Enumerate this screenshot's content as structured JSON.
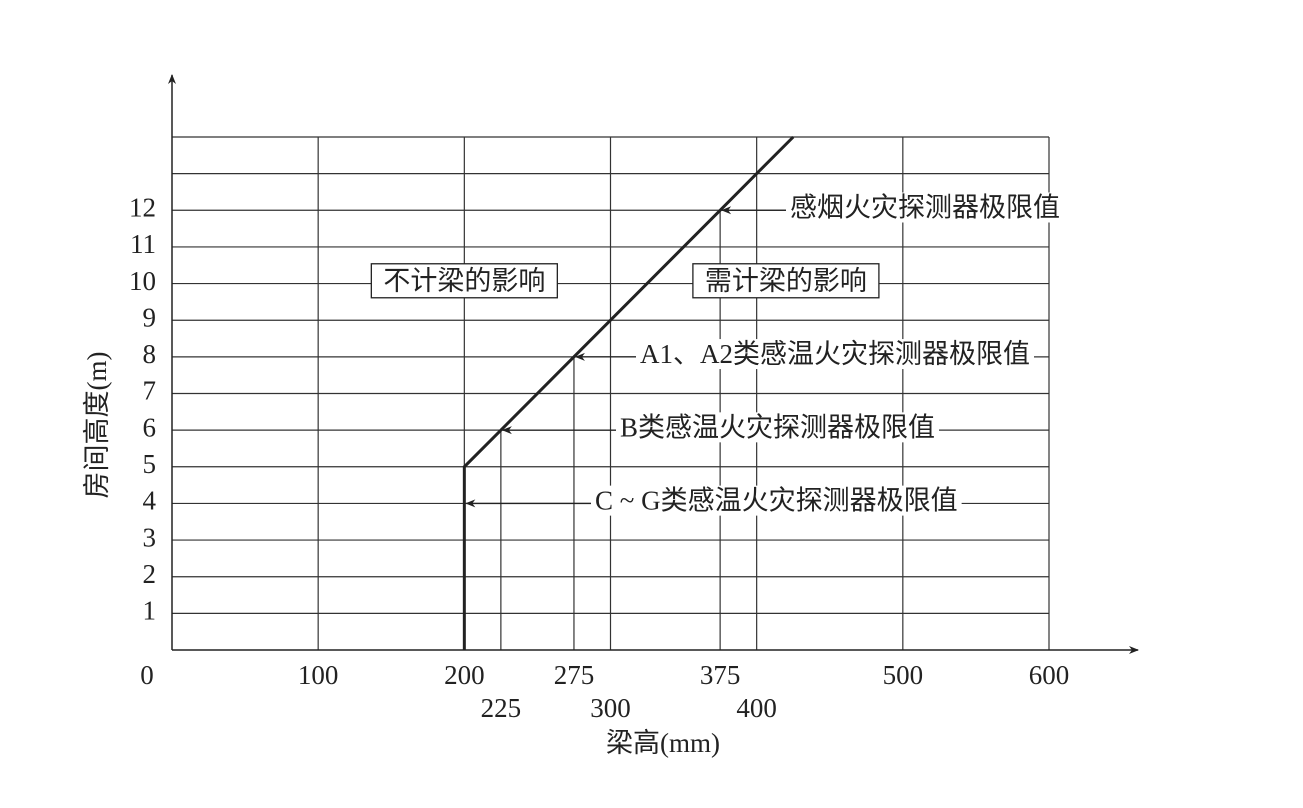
{
  "chart_data": {
    "type": "line",
    "x_label": "梁高(mm)",
    "y_label": "房间高度(m)",
    "xlim": [
      0,
      600
    ],
    "ylim": [
      0,
      14
    ],
    "xticks": [
      0,
      100,
      200,
      225,
      275,
      300,
      375,
      400,
      500,
      600
    ],
    "yticks": [
      1,
      2,
      3,
      4,
      5,
      6,
      7,
      8,
      9,
      10,
      11,
      12
    ],
    "yticks_unlabeled": [
      13,
      14
    ],
    "grid": true,
    "series": [
      {
        "name": "探测器极限值",
        "color": "#222222",
        "x": [
          200,
          200,
          225,
          275,
          375,
          425
        ],
        "values": [
          0,
          5,
          6,
          8,
          12,
          14
        ]
      }
    ],
    "annotations": [
      {
        "text": "感烟火灾探测器极限值",
        "x": 375,
        "y": 12
      },
      {
        "text": "A1、A2类感温火灾探测器极限值",
        "x": 275,
        "y": 8
      },
      {
        "text": "B类感温火灾探测器极限值",
        "x": 225,
        "y": 6
      },
      {
        "text": "C ~ G类感温火灾探测器极限值",
        "x": 200,
        "y": 4
      }
    ],
    "region_labels": [
      {
        "text": "不计梁的影响",
        "x": 200,
        "y": 10
      },
      {
        "text": "需计梁的影响",
        "x": 420,
        "y": 10
      }
    ]
  }
}
